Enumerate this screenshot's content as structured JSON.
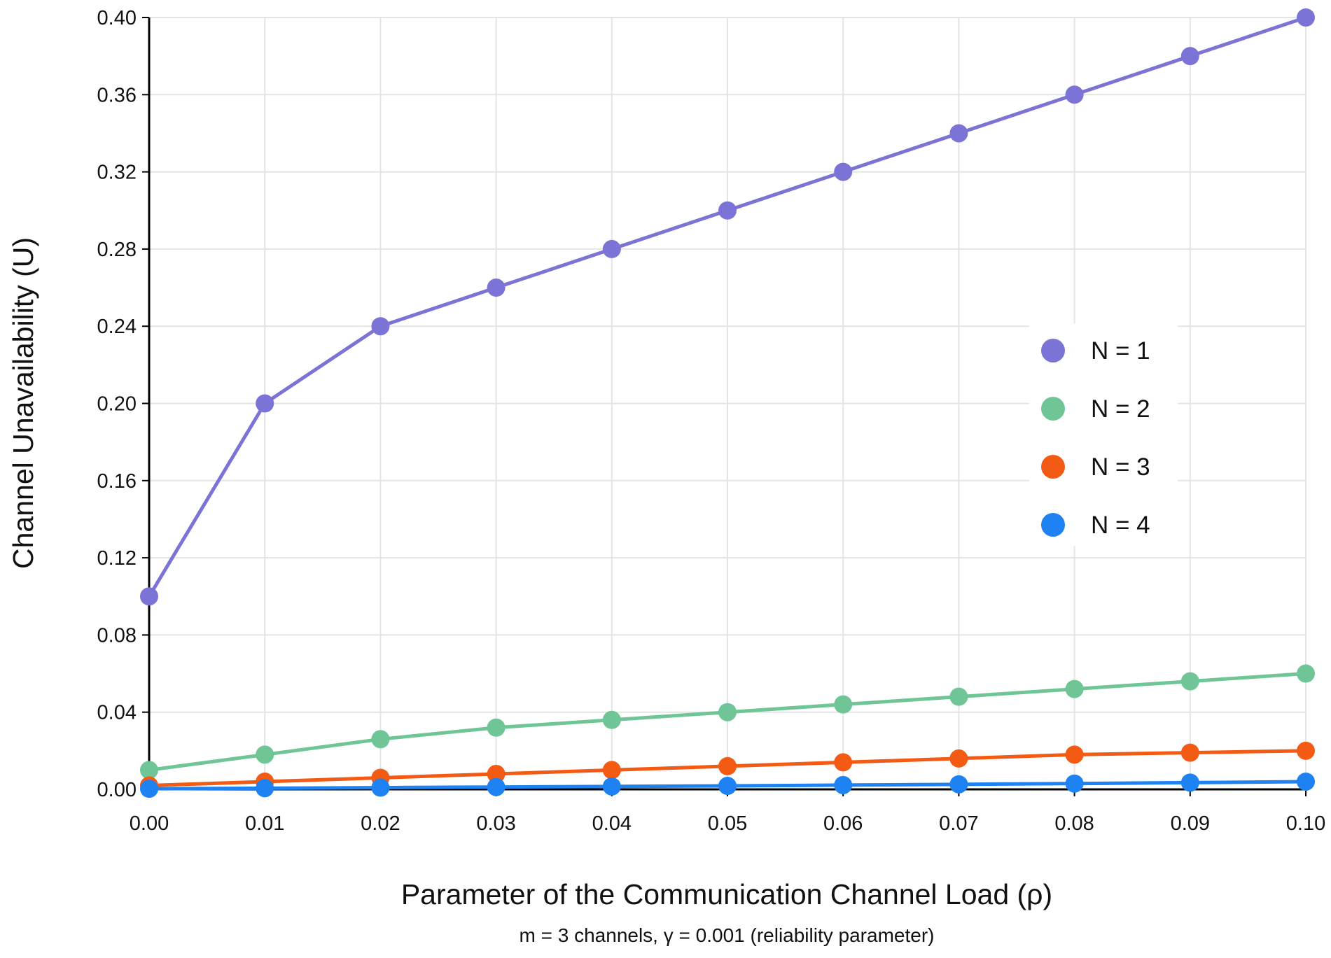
{
  "chart_data": {
    "type": "line",
    "title": "",
    "xlabel": "Parameter of the Communication Channel Load (ρ)",
    "ylabel": "Channel Unavailability (U)",
    "subtitle": "m = 3 channels, γ = 0.001 (reliability parameter)",
    "x": [
      0.0,
      0.01,
      0.02,
      0.03,
      0.04,
      0.05,
      0.06,
      0.07,
      0.08,
      0.09,
      0.1
    ],
    "x_tick_labels": [
      "0.00",
      "0.01",
      "0.02",
      "0.03",
      "0.04",
      "0.05",
      "0.06",
      "0.07",
      "0.08",
      "0.09",
      "0.10"
    ],
    "y_ticks": [
      0.0,
      0.04,
      0.08,
      0.12,
      0.16,
      0.2,
      0.24,
      0.28,
      0.32,
      0.36,
      0.4
    ],
    "y_tick_labels": [
      "0.00",
      "0.04",
      "0.08",
      "0.12",
      "0.16",
      "0.20",
      "0.24",
      "0.28",
      "0.32",
      "0.36",
      "0.40"
    ],
    "xlim": [
      0.0,
      0.1
    ],
    "ylim": [
      0.0,
      0.4
    ],
    "grid": true,
    "legend_position": "right",
    "series": [
      {
        "name": "N = 1",
        "color": "#7b73d6",
        "values": [
          0.1,
          0.2,
          0.24,
          0.26,
          0.28,
          0.3,
          0.32,
          0.34,
          0.36,
          0.38,
          0.4
        ]
      },
      {
        "name": "N = 2",
        "color": "#6fc595",
        "values": [
          0.01,
          0.018,
          0.026,
          0.032,
          0.036,
          0.04,
          0.044,
          0.048,
          0.052,
          0.056,
          0.06
        ]
      },
      {
        "name": "N = 3",
        "color": "#f35a14",
        "values": [
          0.002,
          0.004,
          0.006,
          0.008,
          0.01,
          0.012,
          0.014,
          0.016,
          0.018,
          0.019,
          0.02
        ]
      },
      {
        "name": "N = 4",
        "color": "#1f82f2",
        "values": [
          0.0003,
          0.0006,
          0.0009,
          0.0012,
          0.0015,
          0.0018,
          0.0022,
          0.0026,
          0.003,
          0.0035,
          0.004
        ]
      }
    ]
  }
}
